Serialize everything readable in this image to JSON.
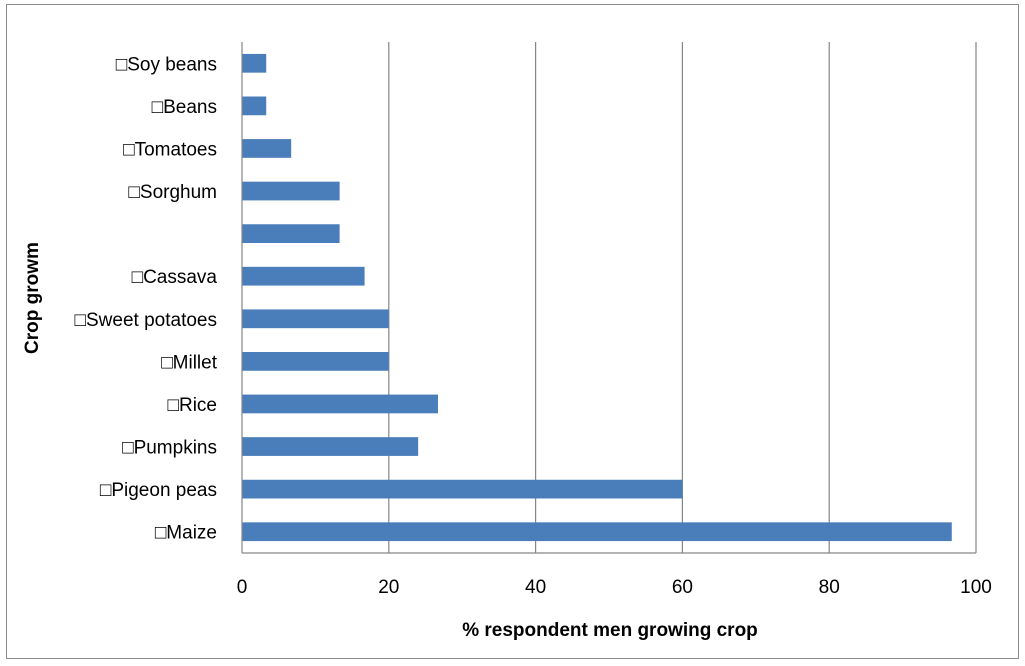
{
  "chart_data": {
    "type": "bar",
    "orientation": "horizontal",
    "categories": [
      "□Maize",
      "□Pigeon peas",
      "□Pumpkins",
      "□Rice",
      "□Millet",
      "□Sweet potatoes",
      "□Cassava",
      "",
      "□Sorghum",
      "□Tomatoes",
      "□Beans",
      "□Soy beans"
    ],
    "values": [
      96.7,
      60,
      24,
      26.7,
      20,
      20,
      16.7,
      13.3,
      13.3,
      6.7,
      3.3,
      3.3
    ],
    "xlabel": "% respondent men growing crop",
    "ylabel": "Crop growm",
    "xlim": [
      0,
      100
    ],
    "xticks": [
      0,
      20,
      40,
      60,
      80,
      100
    ],
    "xtick_labels": [
      "0",
      "20",
      "40",
      "60",
      "80",
      "100"
    ],
    "grid": "vertical major gridlines",
    "legend": "none",
    "bar_color": "#4a7ebb"
  }
}
